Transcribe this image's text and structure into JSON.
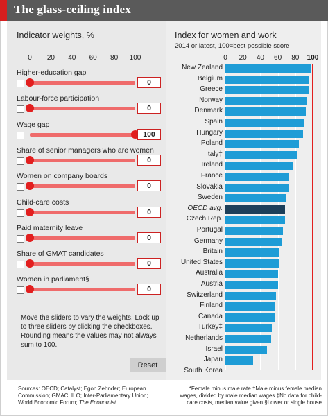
{
  "title": "The glass-ceiling index",
  "left": {
    "heading": "Indicator weights, %",
    "ticks": [
      "0",
      "20",
      "40",
      "60",
      "80",
      "100"
    ],
    "indicators": [
      {
        "label": "Higher-education gap",
        "value": "0",
        "weight": 0
      },
      {
        "label": "Labour-force participation",
        "value": "0",
        "weight": 0
      },
      {
        "label": "Wage gap",
        "value": "100",
        "weight": 100
      },
      {
        "label": "Share of senior managers who are women",
        "value": "0",
        "weight": 0
      },
      {
        "label": "Women on company boards",
        "value": "0",
        "weight": 0
      },
      {
        "label": "Child-care costs",
        "value": "0",
        "weight": 0
      },
      {
        "label": "Paid maternity leave",
        "value": "0",
        "weight": 0
      },
      {
        "label": "Share of GMAT candidates",
        "value": "0",
        "weight": 0
      },
      {
        "label": "Women in parliament§",
        "value": "0",
        "weight": 0
      }
    ],
    "help_text": "Move the sliders to vary the weights. Lock up to three sliders by clicking the checkboxes. Rounding means the values may not always sum to 100.",
    "reset_label": "Reset"
  },
  "right": {
    "heading": "Index for women and work",
    "subheading": "2014 or latest, 100=best possible score",
    "ticks": [
      "0",
      "20",
      "40",
      "60",
      "80",
      "100"
    ]
  },
  "chart_data": {
    "type": "bar",
    "orientation": "horizontal",
    "title": "Index for women and work",
    "subtitle": "2014 or latest, 100=best possible score",
    "xlim": [
      0,
      100
    ],
    "categories": [
      "New Zealand",
      "Belgium",
      "Greece",
      "Norway",
      "Denmark",
      "Spain",
      "Hungary",
      "Poland",
      "Italy‡",
      "Ireland",
      "France",
      "Slovakia",
      "Sweden",
      "OECD avg.",
      "Czech Rep.",
      "Portugal",
      "Germany",
      "Britain",
      "United States",
      "Australia",
      "Austria",
      "Switzerland",
      "Finland",
      "Canada",
      "Turkey‡",
      "Netherlands",
      "Israel",
      "Japan",
      "South Korea"
    ],
    "values": [
      98,
      96,
      95,
      94,
      92,
      90,
      89,
      84,
      82,
      77,
      73,
      73,
      70,
      68,
      68,
      66,
      65,
      62,
      61,
      60,
      60,
      58,
      57,
      56,
      53,
      52,
      48,
      32,
      0
    ],
    "highlight": "OECD avg.",
    "colors": {
      "bar": "#1e9cd6",
      "highlight": "#1c3f5a",
      "reference_line": "#e21f1f"
    }
  },
  "footer": {
    "sources": "Sources: OECD; Catalyst; Egon Zehnder; European Commission; GMAC; ILO; Inter-Parliamentary Union; World Economic Forum;",
    "sources_italic": "The Economist",
    "notes": "*Female minus male rate †Male minus female median wages, divided by male median wages ‡No data for child-care costs, median value given §Lower or single house"
  },
  "colors": {
    "title_bar": "#5a5a5a",
    "accent_red": "#d71e1e",
    "slider": "#ef6b6b"
  }
}
